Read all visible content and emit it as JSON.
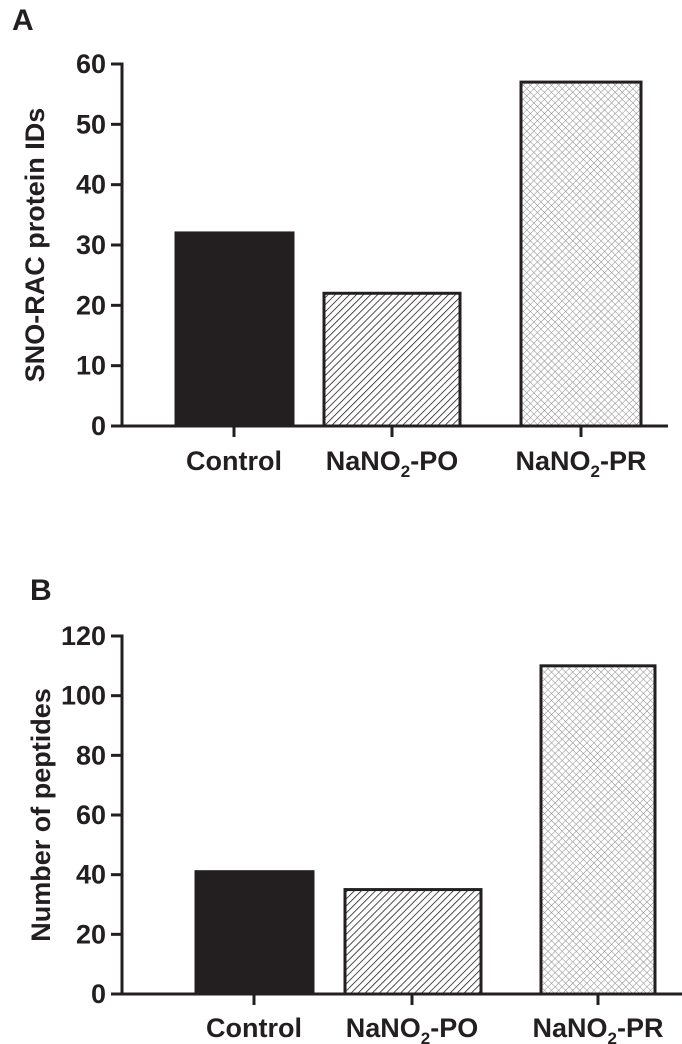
{
  "chart_data": [
    {
      "type": "bar",
      "panel_label": "A",
      "title": "",
      "ylabel": "SNO-RAC protein IDs",
      "xlabel": "",
      "categories": [
        {
          "base": "Control",
          "sub": "",
          "suffix": ""
        },
        {
          "base": "NaNO",
          "sub": "2",
          "suffix": "-PO"
        },
        {
          "base": "NaNO",
          "sub": "2",
          "suffix": "-PR"
        }
      ],
      "values": [
        32,
        22,
        57
      ],
      "ylim": [
        0,
        60
      ],
      "yticks": [
        "0",
        "10",
        "20",
        "30",
        "40",
        "50",
        "60"
      ],
      "grid": false,
      "legend": "none",
      "bar_fills": [
        "solid",
        "diagonal-hatch",
        "crosshatch"
      ],
      "colors": {
        "bar": "#231f20",
        "hatch_light": "#8a8a8a"
      }
    },
    {
      "type": "bar",
      "panel_label": "B",
      "title": "",
      "ylabel": "Number of peptides",
      "xlabel": "",
      "categories": [
        {
          "base": "Control",
          "sub": "",
          "suffix": ""
        },
        {
          "base": "NaNO",
          "sub": "2",
          "suffix": "-PO"
        },
        {
          "base": "NaNO",
          "sub": "2",
          "suffix": "-PR"
        }
      ],
      "values": [
        41,
        35,
        110
      ],
      "ylim": [
        0,
        120
      ],
      "yticks": [
        "0",
        "20",
        "40",
        "60",
        "80",
        "100",
        "120"
      ],
      "grid": false,
      "legend": "none",
      "bar_fills": [
        "solid",
        "diagonal-hatch",
        "crosshatch"
      ],
      "colors": {
        "bar": "#231f20",
        "hatch_light": "#8a8a8a"
      }
    }
  ]
}
